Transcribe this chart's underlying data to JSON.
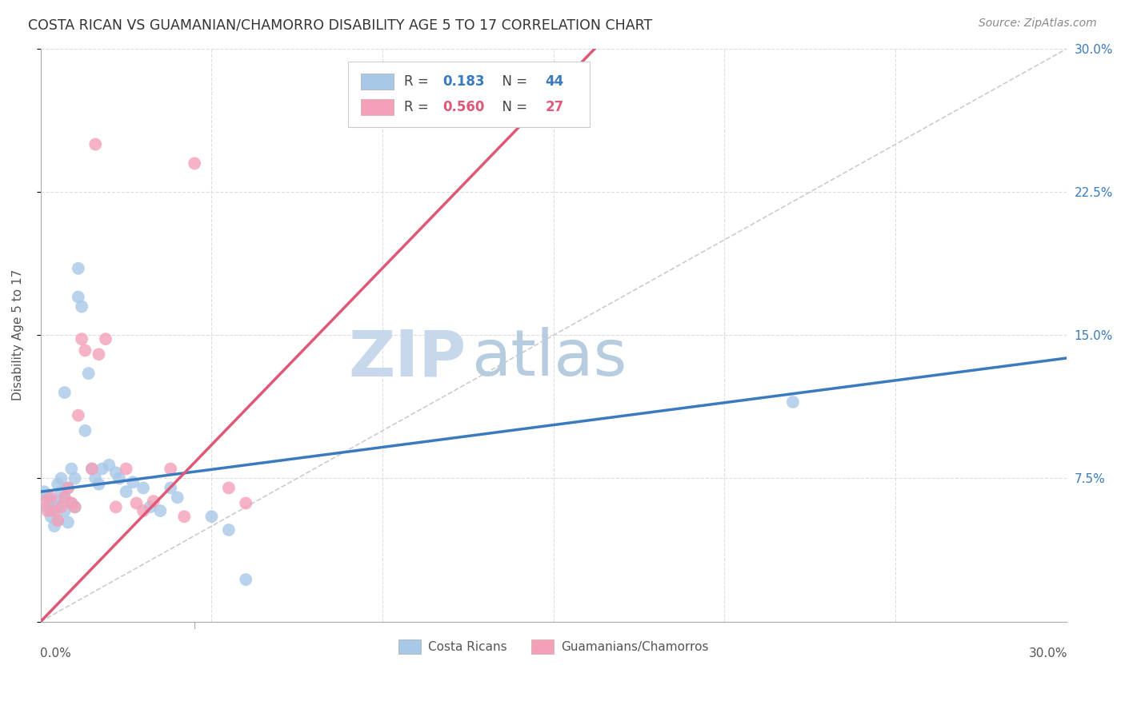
{
  "title": "COSTA RICAN VS GUAMANIAN/CHAMORRO DISABILITY AGE 5 TO 17 CORRELATION CHART",
  "source": "Source: ZipAtlas.com",
  "ylabel": "Disability Age 5 to 17",
  "xlim": [
    0.0,
    0.3
  ],
  "ylim": [
    0.0,
    0.3
  ],
  "r_costa_rican": 0.183,
  "n_costa_rican": 44,
  "r_guamanian": 0.56,
  "n_guamanian": 27,
  "costa_rican_color": "#a8c8e8",
  "guamanian_color": "#f4a0b8",
  "trend_costa_rican_color": "#3a7abf",
  "trend_guamanian_color": "#e05878",
  "diagonal_color": "#cccccc",
  "background_color": "#ffffff",
  "grid_color": "#dddddd",
  "watermark_zip_color": "#c5d5e8",
  "watermark_atlas_color": "#c0cfe0",
  "title_color": "#333333",
  "source_color": "#888888",
  "axis_label_color": "#555555",
  "tick_color": "#3a7abf",
  "cr_x": [
    0.001,
    0.002,
    0.002,
    0.003,
    0.003,
    0.004,
    0.004,
    0.005,
    0.005,
    0.005,
    0.006,
    0.006,
    0.007,
    0.007,
    0.008,
    0.008,
    0.009,
    0.009,
    0.01,
    0.01,
    0.011,
    0.011,
    0.012,
    0.013,
    0.014,
    0.015,
    0.016,
    0.017,
    0.018,
    0.02,
    0.022,
    0.023,
    0.025,
    0.027,
    0.03,
    0.032,
    0.035,
    0.038,
    0.04,
    0.05,
    0.055,
    0.06,
    0.22,
    0.007
  ],
  "cr_y": [
    0.068,
    0.065,
    0.06,
    0.058,
    0.055,
    0.063,
    0.05,
    0.072,
    0.06,
    0.053,
    0.075,
    0.068,
    0.065,
    0.058,
    0.07,
    0.052,
    0.08,
    0.062,
    0.075,
    0.06,
    0.185,
    0.17,
    0.165,
    0.1,
    0.13,
    0.08,
    0.075,
    0.072,
    0.08,
    0.082,
    0.078,
    0.075,
    0.068,
    0.073,
    0.07,
    0.06,
    0.058,
    0.07,
    0.065,
    0.055,
    0.048,
    0.022,
    0.115,
    0.12
  ],
  "gu_x": [
    0.001,
    0.002,
    0.003,
    0.004,
    0.005,
    0.006,
    0.007,
    0.008,
    0.009,
    0.01,
    0.011,
    0.012,
    0.013,
    0.015,
    0.016,
    0.017,
    0.019,
    0.022,
    0.025,
    0.028,
    0.03,
    0.033,
    0.038,
    0.042,
    0.045,
    0.055,
    0.06
  ],
  "gu_y": [
    0.063,
    0.058,
    0.065,
    0.058,
    0.053,
    0.06,
    0.065,
    0.07,
    0.062,
    0.06,
    0.108,
    0.148,
    0.142,
    0.08,
    0.25,
    0.14,
    0.148,
    0.06,
    0.08,
    0.062,
    0.058,
    0.063,
    0.08,
    0.055,
    0.24,
    0.07,
    0.062
  ],
  "cr_trend_x0": 0.0,
  "cr_trend_y0": 0.068,
  "cr_trend_x1": 0.3,
  "cr_trend_y1": 0.138,
  "gu_trend_x0": 0.0,
  "gu_trend_y0": 0.0,
  "gu_trend_x1": 0.135,
  "gu_trend_y1": 0.25
}
